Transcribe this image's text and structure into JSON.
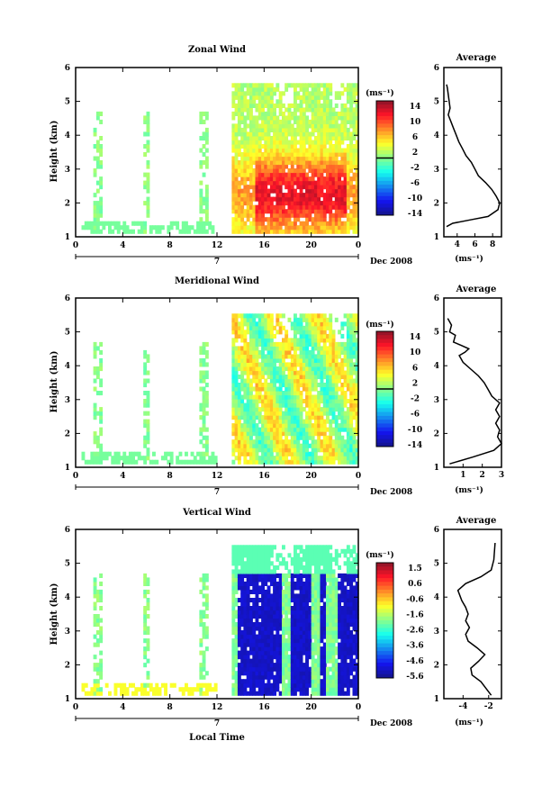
{
  "chart_data": [
    {
      "type": "heatmap",
      "title": "Zonal Wind",
      "xlabel": "",
      "ylabel": "Height (km)",
      "xlim": [
        0,
        24
      ],
      "ylim": [
        1,
        6
      ],
      "xticks": [
        "0",
        "4",
        "8",
        "12",
        "16",
        "20",
        "0"
      ],
      "yticks": [
        "1",
        "2",
        "3",
        "4",
        "5",
        "6"
      ],
      "date_marker": "7",
      "date_label": "Dec 2008",
      "colorbar": {
        "unit": "(ms⁻¹)",
        "labels": [
          "14",
          "10",
          "6",
          "2",
          "-2",
          "-6",
          "-10",
          "-14"
        ],
        "range": [
          -14,
          14
        ]
      },
      "average_profile": {
        "title": "Average",
        "xlabel": "(ms⁻¹)",
        "xlim": [
          2.5,
          9
        ],
        "xticks": [
          "4",
          "6",
          "8"
        ],
        "yticks": [
          "1",
          "2",
          "3",
          "4",
          "5",
          "6"
        ],
        "points": [
          [
            2.8,
            1.3
          ],
          [
            3.5,
            1.4
          ],
          [
            5.5,
            1.5
          ],
          [
            7.5,
            1.6
          ],
          [
            8.6,
            1.8
          ],
          [
            8.8,
            2.0
          ],
          [
            8.4,
            2.2
          ],
          [
            7.9,
            2.4
          ],
          [
            7.2,
            2.6
          ],
          [
            6.4,
            2.8
          ],
          [
            6.0,
            3.0
          ],
          [
            5.6,
            3.2
          ],
          [
            5.0,
            3.4
          ],
          [
            4.6,
            3.6
          ],
          [
            4.2,
            3.8
          ],
          [
            3.9,
            4.0
          ],
          [
            3.6,
            4.2
          ],
          [
            3.3,
            4.4
          ],
          [
            3.0,
            4.6
          ],
          [
            3.2,
            4.8
          ],
          [
            3.1,
            5.0
          ],
          [
            3.0,
            5.2
          ],
          [
            2.9,
            5.4
          ],
          [
            2.8,
            5.5
          ]
        ]
      }
    },
    {
      "type": "heatmap",
      "title": "Meridional Wind",
      "xlabel": "",
      "ylabel": "Height (km)",
      "xlim": [
        0,
        24
      ],
      "ylim": [
        1,
        6
      ],
      "xticks": [
        "0",
        "4",
        "8",
        "12",
        "16",
        "20",
        "0"
      ],
      "yticks": [
        "1",
        "2",
        "3",
        "4",
        "5",
        "6"
      ],
      "date_marker": "7",
      "date_label": "Dec 2008",
      "colorbar": {
        "unit": "(ms⁻¹)",
        "labels": [
          "14",
          "10",
          "6",
          "2",
          "-2",
          "-6",
          "-10",
          "-14"
        ],
        "range": [
          -14,
          14
        ]
      },
      "average_profile": {
        "title": "Average",
        "xlabel": "(ms⁻¹)",
        "xlim": [
          0,
          3
        ],
        "xticks": [
          "1",
          "2",
          "3"
        ],
        "yticks": [
          "1",
          "2",
          "3",
          "4",
          "5",
          "6"
        ],
        "points": [
          [
            0.3,
            1.1
          ],
          [
            1.5,
            1.3
          ],
          [
            2.6,
            1.5
          ],
          [
            3.0,
            1.7
          ],
          [
            2.8,
            1.9
          ],
          [
            2.9,
            2.1
          ],
          [
            2.7,
            2.3
          ],
          [
            2.9,
            2.5
          ],
          [
            2.7,
            2.7
          ],
          [
            2.9,
            2.9
          ],
          [
            2.5,
            3.1
          ],
          [
            2.3,
            3.3
          ],
          [
            2.1,
            3.5
          ],
          [
            1.8,
            3.7
          ],
          [
            1.4,
            3.9
          ],
          [
            1.0,
            4.1
          ],
          [
            0.8,
            4.3
          ],
          [
            1.1,
            4.4
          ],
          [
            1.3,
            4.5
          ],
          [
            0.9,
            4.6
          ],
          [
            0.5,
            4.7
          ],
          [
            0.6,
            4.9
          ],
          [
            0.3,
            5.0
          ],
          [
            0.4,
            5.2
          ],
          [
            0.2,
            5.4
          ]
        ]
      }
    },
    {
      "type": "heatmap",
      "title": "Vertical Wind",
      "xlabel": "Local Time",
      "ylabel": "Height (km)",
      "xlim": [
        0,
        24
      ],
      "ylim": [
        1,
        6
      ],
      "xticks": [
        "0",
        "4",
        "8",
        "12",
        "16",
        "20",
        "0"
      ],
      "yticks": [
        "1",
        "2",
        "3",
        "4",
        "5",
        "6"
      ],
      "date_marker": "7",
      "date_label": "Dec 2008",
      "colorbar": {
        "unit": "(ms⁻¹)",
        "labels": [
          "1.5",
          "0.6",
          "-0.6",
          "-1.6",
          "-2.6",
          "-3.6",
          "-4.6",
          "-5.6"
        ],
        "range": [
          -5.6,
          1.5
        ]
      },
      "average_profile": {
        "title": "Average",
        "xlabel": "(ms⁻¹)",
        "xlim": [
          -5.5,
          -1
        ],
        "xticks": [
          "-4",
          "-2"
        ],
        "yticks": [
          "1",
          "2",
          "3",
          "4",
          "5",
          "6"
        ],
        "points": [
          [
            -1.8,
            1.1
          ],
          [
            -2.2,
            1.3
          ],
          [
            -2.6,
            1.5
          ],
          [
            -3.3,
            1.7
          ],
          [
            -3.4,
            1.9
          ],
          [
            -2.8,
            2.1
          ],
          [
            -2.3,
            2.3
          ],
          [
            -2.9,
            2.5
          ],
          [
            -3.6,
            2.7
          ],
          [
            -3.8,
            2.9
          ],
          [
            -3.5,
            3.1
          ],
          [
            -3.8,
            3.3
          ],
          [
            -3.6,
            3.5
          ],
          [
            -3.8,
            3.7
          ],
          [
            -4.1,
            3.9
          ],
          [
            -4.4,
            4.2
          ],
          [
            -3.8,
            4.4
          ],
          [
            -2.6,
            4.6
          ],
          [
            -1.8,
            4.8
          ],
          [
            -1.6,
            5.1
          ],
          [
            -1.5,
            5.6
          ]
        ]
      }
    }
  ]
}
